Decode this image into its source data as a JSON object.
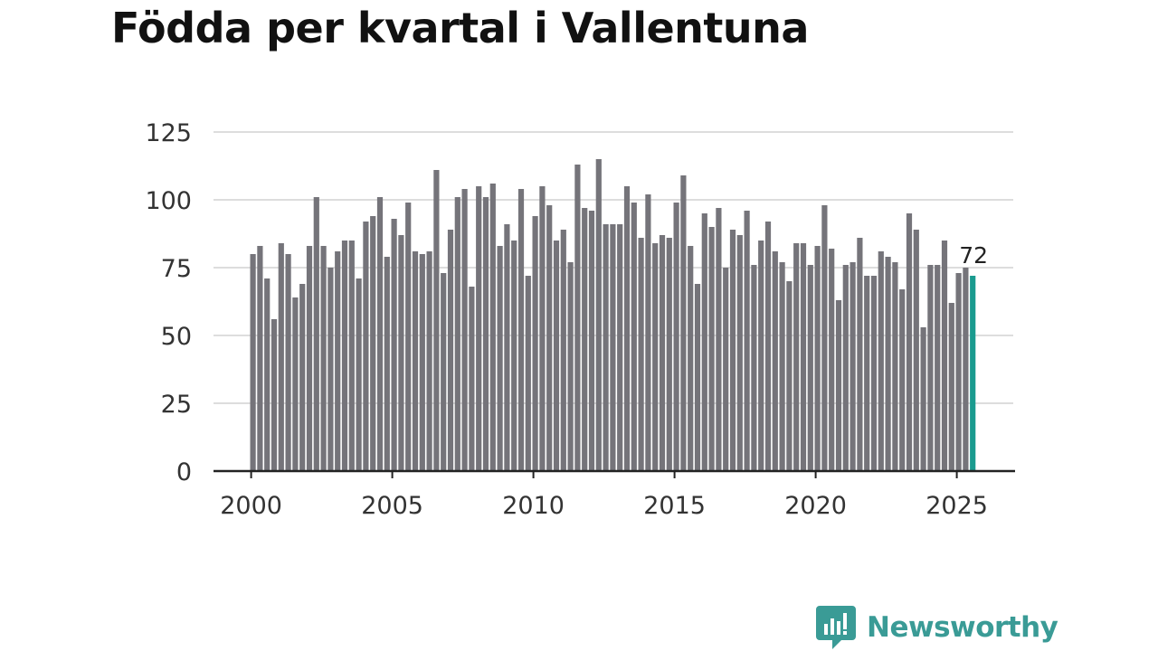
{
  "chart_data": {
    "type": "bar",
    "title": "Födda per kvartal i Vallentuna",
    "xlabel": "",
    "ylabel": "",
    "ylim": [
      0,
      125
    ],
    "yticks": [
      0,
      25,
      50,
      75,
      100,
      125
    ],
    "xticks": [
      "2000",
      "2005",
      "2010",
      "2015",
      "2020",
      "2025"
    ],
    "x_start_year": 2000,
    "x_end_year": 2025.75,
    "grid": true,
    "bar_color": "#75747a",
    "highlight_color": "#1a9b8f",
    "highlight_label": "72",
    "values": [
      80,
      83,
      71,
      56,
      84,
      80,
      64,
      69,
      83,
      101,
      83,
      75,
      81,
      85,
      85,
      71,
      92,
      94,
      101,
      79,
      93,
      87,
      99,
      81,
      80,
      81,
      111,
      73,
      89,
      101,
      104,
      68,
      105,
      101,
      106,
      83,
      91,
      85,
      104,
      72,
      94,
      105,
      98,
      85,
      89,
      77,
      113,
      97,
      96,
      115,
      91,
      91,
      91,
      105,
      99,
      86,
      102,
      84,
      87,
      86,
      99,
      109,
      83,
      69,
      95,
      90,
      97,
      75,
      89,
      87,
      96,
      76,
      85,
      92,
      81,
      77,
      70,
      84,
      84,
      76,
      83,
      98,
      82,
      63,
      76,
      77,
      86,
      72,
      72,
      81,
      79,
      77,
      67,
      95,
      89,
      53,
      76,
      76,
      85,
      62,
      73,
      75,
      72
    ]
  },
  "brand": {
    "name": "Newsworthy",
    "color": "#3a9b96"
  }
}
